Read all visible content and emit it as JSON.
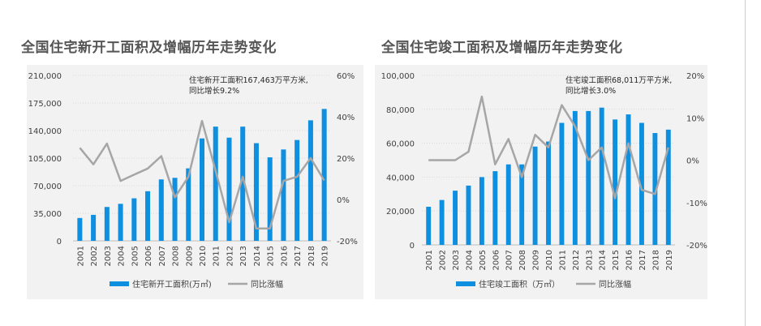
{
  "charts": [
    {
      "title": "全国住宅新开工面积及增幅历年走势变化",
      "legend_bar": "住宅新开工面积(万㎡)",
      "legend_line": "同比涨幅",
      "annotation": [
        "住宅新开工面积167,463万平方米,",
        "同比增长9.2%"
      ]
    },
    {
      "title": "全国住宅竣工面积及增幅历年走势变化",
      "legend_bar": "住宅竣工面积（万㎡）",
      "legend_line": "同比涨幅",
      "annotation": [
        "住宅竣工面积68,011万平方米,",
        "同比增长3.0%"
      ]
    }
  ],
  "colors": {
    "bar": "#0e8fe0",
    "line": "#a6a6a6",
    "panel": "#f2f2f2",
    "grid": "#d9d9d9",
    "axis_text": "#404040",
    "title": "#555555"
  },
  "chart_data": [
    {
      "type": "bar+line",
      "title": "全国住宅新开工面积及增幅历年走势变化",
      "categories": [
        "2001",
        "2002",
        "2003",
        "2004",
        "2005",
        "2006",
        "2007",
        "2008",
        "2009",
        "2010",
        "2011",
        "2012",
        "2013",
        "2014",
        "2015",
        "2016",
        "2017",
        "2018",
        "2019"
      ],
      "series": [
        {
          "name": "住宅新开工面积(万㎡)",
          "type": "bar",
          "axis": "left",
          "values": [
            29000,
            33000,
            43000,
            47000,
            54000,
            63000,
            78000,
            80000,
            92000,
            130000,
            145000,
            131000,
            145000,
            124000,
            106000,
            116000,
            128000,
            153000,
            167463
          ]
        },
        {
          "name": "同比涨幅",
          "type": "line",
          "axis": "right",
          "values": [
            0.25,
            0.17,
            0.27,
            0.09,
            0.12,
            0.15,
            0.21,
            0.01,
            0.11,
            0.38,
            0.14,
            -0.11,
            0.11,
            -0.14,
            -0.14,
            0.09,
            0.11,
            0.2,
            0.092
          ]
        }
      ],
      "y_left": {
        "min": 0,
        "max": 210000,
        "ticks": [
          "0",
          "35,000",
          "70,000",
          "105,000",
          "140,000",
          "175,000",
          "210,000"
        ]
      },
      "y_right": {
        "min": -0.2,
        "max": 0.6,
        "ticks": [
          "-20%",
          "0%",
          "20%",
          "40%",
          "60%"
        ]
      },
      "grid": true,
      "legend": "bottom"
    },
    {
      "type": "bar+line",
      "title": "全国住宅竣工面积及增幅历年走势变化",
      "categories": [
        "2001",
        "2002",
        "2003",
        "2004",
        "2005",
        "2006",
        "2007",
        "2008",
        "2009",
        "2010",
        "2011",
        "2012",
        "2013",
        "2014",
        "2015",
        "2016",
        "2017",
        "2018",
        "2019"
      ],
      "series": [
        {
          "name": "住宅竣工面积（万㎡）",
          "type": "bar",
          "axis": "left",
          "values": [
            22500,
            26500,
            32000,
            35000,
            40000,
            43500,
            47500,
            47500,
            58000,
            61000,
            72000,
            79000,
            79000,
            81000,
            74000,
            77000,
            72000,
            66000,
            68011
          ]
        },
        {
          "name": "同比涨幅",
          "type": "line",
          "axis": "right",
          "values": [
            0.0,
            0.0,
            0.0,
            0.02,
            0.15,
            -0.01,
            0.05,
            -0.04,
            0.06,
            0.03,
            0.13,
            0.08,
            0.0,
            0.03,
            -0.09,
            0.04,
            -0.07,
            -0.08,
            0.03
          ]
        }
      ],
      "y_left": {
        "min": 0,
        "max": 100000,
        "ticks": [
          "0",
          "20,000",
          "40,000",
          "60,000",
          "80,000",
          "100,000"
        ]
      },
      "y_right": {
        "min": -0.2,
        "max": 0.2,
        "ticks": [
          "-20%",
          "-10%",
          "0%",
          "10%",
          "20%"
        ]
      },
      "grid": true,
      "legend": "bottom"
    }
  ]
}
